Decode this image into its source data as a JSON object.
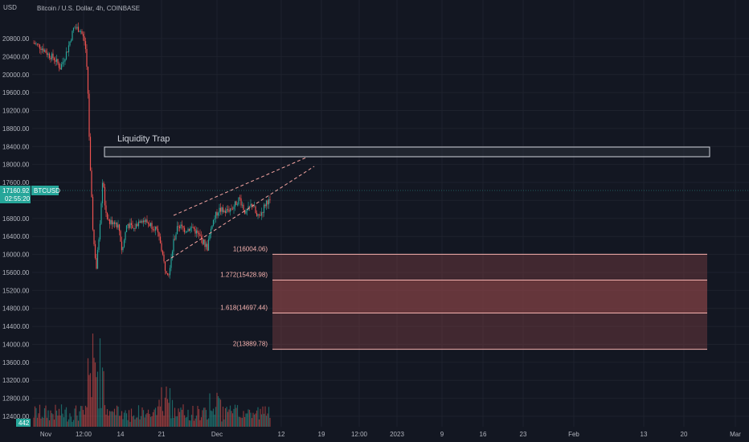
{
  "header": {
    "currency": "USD",
    "title": "Bitcoin / U.S. Dollar, 4h, COINBASE"
  },
  "colors": {
    "background": "#131722",
    "grid": "#1e222d",
    "axis_text": "#b2b5be",
    "up": "#26a69a",
    "down": "#ef5350",
    "fib_line": "#f7b3b0",
    "fib_fill": "#7a3e42",
    "trap_box": "#d1d4dc"
  },
  "price_axis": {
    "ticks": [
      "20800.00",
      "20400.00",
      "20000.00",
      "19600.00",
      "19200.00",
      "18800.00",
      "18400.00",
      "18000.00",
      "17600.00",
      "17200.00",
      "16800.00",
      "16400.00",
      "16000.00",
      "15600.00",
      "15200.00",
      "14800.00",
      "14400.00",
      "14000.00",
      "13600.00",
      "13200.00",
      "12800.00",
      "12400.00"
    ],
    "last_price": "17160.92",
    "countdown": "02:55:20",
    "symbol": "BTCUSD",
    "volume_badge": "442"
  },
  "time_axis": {
    "ticks": [
      "Nov",
      "12:00",
      "14",
      "21",
      "Dec",
      "12",
      "19",
      "12:00",
      "2023",
      "9",
      "16",
      "23",
      "Feb",
      "13",
      "20",
      "Mar"
    ]
  },
  "annotations": {
    "liquidity_trap": "Liquidity Trap",
    "fib_levels": [
      {
        "label": "1(16004.06)",
        "price": 16004.06
      },
      {
        "label": "1.272(15428.98)",
        "price": 15428.98
      },
      {
        "label": "1.618(14697.44)",
        "price": 14697.44
      },
      {
        "label": "2(13889.78)",
        "price": 13889.78
      }
    ]
  },
  "chart_data": {
    "type": "candlestick",
    "ylim": [
      12250,
      21100
    ],
    "last_price": 17160.92,
    "liquidity_trap_range": [
      17900,
      18100
    ],
    "wedge": {
      "upper": [
        [
          16950,
          17820
        ]
      ],
      "lower": [
        [
          15520,
          17690
        ]
      ]
    },
    "volume_label": "442"
  }
}
